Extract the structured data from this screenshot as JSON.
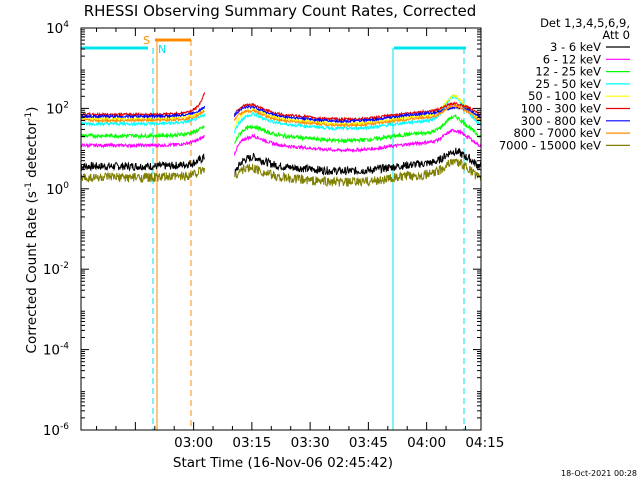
{
  "chart_data": {
    "type": "line",
    "title": "RHESSI Observing Summary Count Rates, Corrected",
    "xlabel": "Start Time (16-Nov-06 02:45:42)",
    "ylabel": "Corrected Count Rate (s⁻¹ detector⁻¹)",
    "ylabel_parts": {
      "main": "Corrected Count Rate (s",
      "sup1": "-1",
      "mid": " detector",
      "sup2": "-1",
      "end": ")"
    },
    "yscale": "log",
    "ylim": [
      1e-06,
      10000.0
    ],
    "xlim_minutes": [
      -14,
      89
    ],
    "x_ticks": [
      {
        "t": 15,
        "label": "03:00"
      },
      {
        "t": 30,
        "label": "03:15"
      },
      {
        "t": 45,
        "label": "03:30"
      },
      {
        "t": 60,
        "label": "03:45"
      },
      {
        "t": 75,
        "label": "04:00"
      },
      {
        "t": 90,
        "label": "04:15"
      }
    ],
    "y_ticks": [
      {
        "exp": 4,
        "label": "10",
        "sup": "4"
      },
      {
        "exp": 2,
        "label": "10",
        "sup": "2"
      },
      {
        "exp": 0,
        "label": "10",
        "sup": "0"
      },
      {
        "exp": -2,
        "label": "10",
        "sup": "-2"
      },
      {
        "exp": -4,
        "label": "10",
        "sup": "-4"
      },
      {
        "exp": -6,
        "label": "10",
        "sup": "-6"
      }
    ],
    "legend_header": [
      "Det 1,3,4,5,6,9,",
      "Att 0"
    ],
    "legend_position": "top-right",
    "series": [
      {
        "name": "3 - 6 keV",
        "color": "#000000"
      },
      {
        "name": "6 - 12 keV",
        "color": "#ff00ff"
      },
      {
        "name": "12 - 25 keV",
        "color": "#00ff00"
      },
      {
        "name": "25 - 50 keV",
        "color": "#00ffff"
      },
      {
        "name": "50 - 100 keV",
        "color": "#ffff00"
      },
      {
        "name": "100 - 300 keV",
        "color": "#e00000"
      },
      {
        "name": "300 - 800 keV",
        "color": "#0000ff"
      },
      {
        "name": "800 - 7000 keV",
        "color": "#ff8c00"
      },
      {
        "name": "7000 - 15000 keV",
        "color": "#808000"
      }
    ],
    "annotations": {
      "saa_flag_color": "#00e5ee",
      "night_flag_color": "#ff8c00",
      "s_label": "S",
      "n_label": "N"
    }
  },
  "footer_date": "18-Oct-2021 00:28"
}
